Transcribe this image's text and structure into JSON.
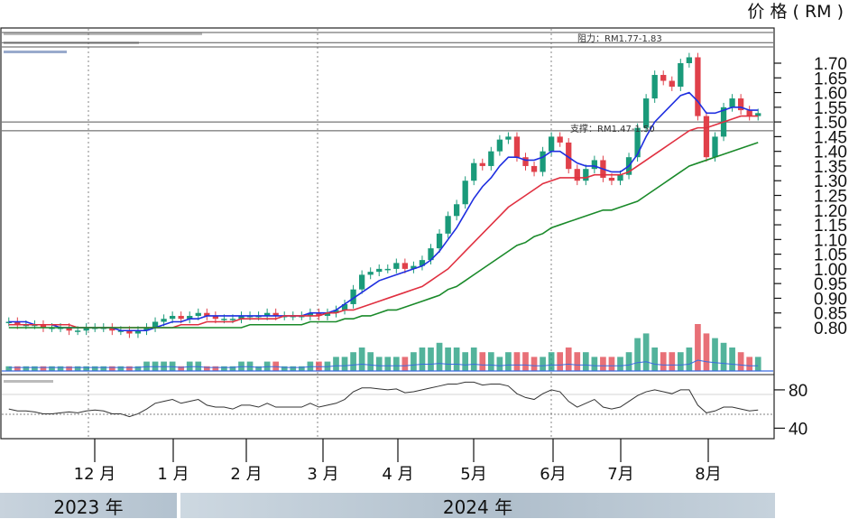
{
  "unit_label": "价 格 ( RM )",
  "year_labels": [
    "2023 年",
    "2024 年"
  ],
  "annotations": {
    "resistance": "阻力：RM1.77-1.83",
    "support": "支撑：RM1.47-1.50"
  },
  "colors": {
    "up_candle": "#1a9a7a",
    "down_candle": "#e0404a",
    "ma_short": "#1f2fe0",
    "ma_mid": "#e03040",
    "ma_long": "#1a8a2a",
    "rsi": "#333333",
    "level_line": "#555555",
    "volume_avg": "#3a6ae0"
  },
  "chart_data": [
    {
      "type": "candlestick",
      "name": "price",
      "ylabel": "价 格 ( RM )",
      "ylim": [
        0.8,
        1.7
      ],
      "y_ticks": [
        "1.70",
        "1.65",
        "1.60",
        "1.55",
        "1.50",
        "1.45",
        "1.40",
        "1.35",
        "1.30",
        "1.25",
        "1.20",
        "1.15",
        "1.10",
        "1.05",
        "1.00",
        "0.95",
        "0.90",
        "0.85",
        "0.80"
      ],
      "x_ticks": [
        "12 月",
        "1 月",
        "2 月",
        "3 月",
        "4 月",
        "5月",
        "6月",
        "7月",
        "8月"
      ],
      "levels": [
        {
          "label": "阻力：RM1.77-1.83",
          "values": [
            1.77,
            1.83
          ]
        },
        {
          "label": "支撑：RM1.47-1.50",
          "values": [
            1.47,
            1.5
          ]
        }
      ],
      "series": [
        {
          "name": "close",
          "values": [
            0.82,
            0.81,
            0.81,
            0.81,
            0.8,
            0.8,
            0.8,
            0.79,
            0.79,
            0.8,
            0.8,
            0.8,
            0.79,
            0.79,
            0.78,
            0.79,
            0.8,
            0.82,
            0.83,
            0.84,
            0.83,
            0.84,
            0.85,
            0.84,
            0.83,
            0.83,
            0.83,
            0.84,
            0.84,
            0.84,
            0.85,
            0.84,
            0.84,
            0.84,
            0.84,
            0.85,
            0.84,
            0.85,
            0.86,
            0.88,
            0.93,
            0.98,
            0.99,
            1.0,
            1.0,
            1.02,
            1.0,
            1.01,
            1.03,
            1.07,
            1.12,
            1.18,
            1.22,
            1.3,
            1.36,
            1.35,
            1.4,
            1.44,
            1.45,
            1.38,
            1.35,
            1.33,
            1.4,
            1.45,
            1.43,
            1.34,
            1.3,
            1.34,
            1.37,
            1.31,
            1.3,
            1.32,
            1.38,
            1.48,
            1.58,
            1.66,
            1.64,
            1.62,
            1.7,
            1.72,
            1.52,
            1.38,
            1.45,
            1.55,
            1.58,
            1.54,
            1.52,
            1.53
          ]
        },
        {
          "name": "ma_short",
          "values": [
            0.82,
            0.82,
            0.82,
            0.81,
            0.81,
            0.81,
            0.8,
            0.8,
            0.8,
            0.8,
            0.8,
            0.8,
            0.8,
            0.79,
            0.79,
            0.79,
            0.79,
            0.8,
            0.81,
            0.82,
            0.82,
            0.83,
            0.83,
            0.84,
            0.84,
            0.84,
            0.84,
            0.84,
            0.84,
            0.84,
            0.84,
            0.84,
            0.84,
            0.84,
            0.84,
            0.85,
            0.85,
            0.85,
            0.86,
            0.88,
            0.9,
            0.92,
            0.94,
            0.96,
            0.97,
            0.98,
            0.99,
            1.0,
            1.01,
            1.03,
            1.06,
            1.1,
            1.14,
            1.19,
            1.24,
            1.28,
            1.31,
            1.35,
            1.38,
            1.38,
            1.37,
            1.37,
            1.38,
            1.4,
            1.4,
            1.38,
            1.36,
            1.35,
            1.35,
            1.34,
            1.33,
            1.33,
            1.35,
            1.39,
            1.45,
            1.5,
            1.53,
            1.56,
            1.59,
            1.6,
            1.57,
            1.53,
            1.53,
            1.54,
            1.55,
            1.55,
            1.54,
            1.54
          ]
        },
        {
          "name": "ma_mid",
          "values": [
            0.81,
            0.81,
            0.81,
            0.81,
            0.81,
            0.81,
            0.81,
            0.81,
            0.8,
            0.8,
            0.8,
            0.8,
            0.8,
            0.8,
            0.8,
            0.8,
            0.8,
            0.8,
            0.8,
            0.8,
            0.81,
            0.81,
            0.81,
            0.82,
            0.82,
            0.82,
            0.82,
            0.83,
            0.83,
            0.83,
            0.83,
            0.83,
            0.84,
            0.84,
            0.84,
            0.84,
            0.84,
            0.85,
            0.85,
            0.86,
            0.86,
            0.87,
            0.88,
            0.89,
            0.9,
            0.91,
            0.92,
            0.93,
            0.94,
            0.96,
            0.98,
            1.0,
            1.03,
            1.06,
            1.09,
            1.12,
            1.15,
            1.18,
            1.21,
            1.23,
            1.25,
            1.27,
            1.29,
            1.3,
            1.31,
            1.31,
            1.31,
            1.31,
            1.32,
            1.32,
            1.32,
            1.32,
            1.33,
            1.35,
            1.37,
            1.39,
            1.41,
            1.43,
            1.45,
            1.47,
            1.48,
            1.48,
            1.49,
            1.5,
            1.51,
            1.52,
            1.52,
            1.52
          ]
        },
        {
          "name": "ma_long",
          "values": [
            0.8,
            0.8,
            0.8,
            0.8,
            0.8,
            0.8,
            0.8,
            0.8,
            0.8,
            0.8,
            0.8,
            0.8,
            0.8,
            0.8,
            0.8,
            0.8,
            0.8,
            0.8,
            0.8,
            0.8,
            0.8,
            0.8,
            0.8,
            0.8,
            0.8,
            0.8,
            0.8,
            0.8,
            0.81,
            0.81,
            0.81,
            0.81,
            0.81,
            0.81,
            0.81,
            0.82,
            0.82,
            0.82,
            0.82,
            0.83,
            0.83,
            0.84,
            0.84,
            0.85,
            0.86,
            0.86,
            0.87,
            0.88,
            0.89,
            0.9,
            0.91,
            0.93,
            0.94,
            0.96,
            0.98,
            1.0,
            1.02,
            1.04,
            1.06,
            1.08,
            1.09,
            1.11,
            1.12,
            1.14,
            1.15,
            1.16,
            1.17,
            1.18,
            1.19,
            1.2,
            1.2,
            1.21,
            1.22,
            1.23,
            1.25,
            1.27,
            1.29,
            1.31,
            1.33,
            1.35,
            1.36,
            1.37,
            1.38,
            1.39,
            1.4,
            1.41,
            1.42,
            1.43
          ]
        }
      ]
    },
    {
      "type": "bar",
      "name": "volume",
      "values": [
        1,
        1,
        1,
        1,
        1,
        1,
        1,
        1,
        1,
        1,
        1,
        1,
        1,
        1,
        1,
        1,
        2,
        2,
        2,
        2,
        1,
        2,
        2,
        1,
        1,
        1,
        1,
        2,
        2,
        1,
        2,
        2,
        1,
        1,
        1,
        2,
        2,
        2,
        3,
        3,
        4,
        5,
        4,
        3,
        3,
        3,
        3,
        4,
        5,
        5,
        6,
        5,
        5,
        4,
        5,
        4,
        4,
        3,
        4,
        4,
        4,
        3,
        3,
        4,
        4,
        5,
        4,
        4,
        3,
        3,
        3,
        3,
        4,
        7,
        8,
        5,
        4,
        4,
        4,
        5,
        10,
        8,
        7,
        6,
        5,
        4,
        3,
        3
      ]
    },
    {
      "type": "line",
      "name": "rsi",
      "ylim": [
        30,
        95
      ],
      "y_ticks": [
        "80",
        "40"
      ],
      "values": [
        60,
        58,
        58,
        57,
        55,
        55,
        56,
        57,
        56,
        58,
        59,
        58,
        55,
        55,
        52,
        55,
        60,
        66,
        68,
        70,
        66,
        68,
        70,
        64,
        62,
        62,
        60,
        64,
        64,
        62,
        66,
        62,
        62,
        62,
        62,
        66,
        62,
        64,
        66,
        70,
        78,
        82,
        82,
        81,
        80,
        81,
        77,
        78,
        80,
        82,
        84,
        86,
        86,
        88,
        88,
        85,
        86,
        86,
        84,
        76,
        72,
        70,
        76,
        80,
        78,
        68,
        62,
        66,
        70,
        62,
        60,
        62,
        68,
        74,
        78,
        80,
        78,
        76,
        80,
        80,
        64,
        56,
        58,
        62,
        62,
        60,
        58,
        59
      ]
    }
  ]
}
